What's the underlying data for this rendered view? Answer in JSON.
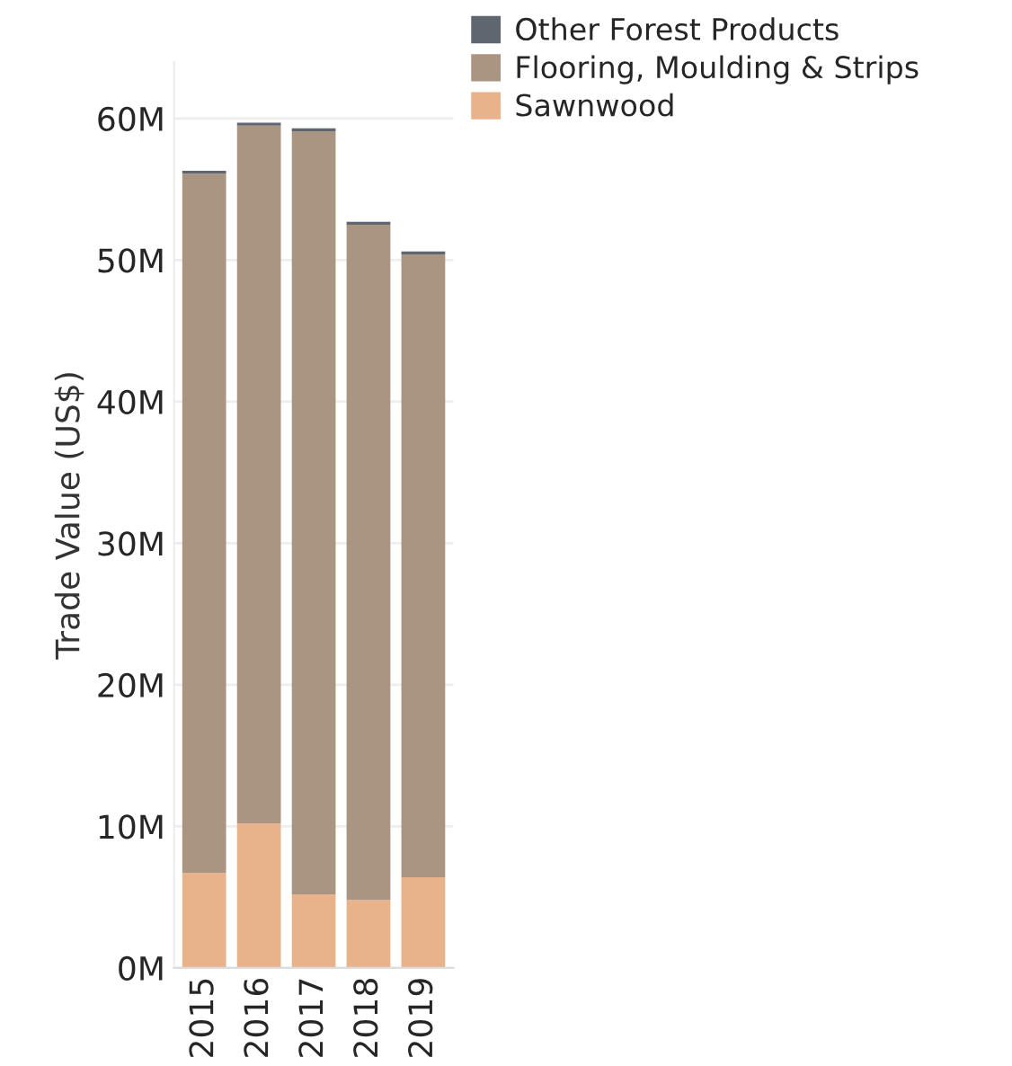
{
  "chart_data": {
    "type": "bar",
    "stacked": true,
    "ylabel": "Trade Value (US$)",
    "categories": [
      "2015",
      "2016",
      "2017",
      "2018",
      "2019"
    ],
    "series": [
      {
        "name": "Sawnwood",
        "color": "#e8b28a",
        "values": [
          6.7,
          10.2,
          5.2,
          4.8,
          6.4
        ]
      },
      {
        "name": "Flooring, Moulding & Strips",
        "color": "#a99581",
        "values": [
          49.4,
          49.3,
          53.9,
          47.7,
          44.0
        ]
      },
      {
        "name": "Other Forest Products",
        "color": "#5f6670",
        "values": [
          0.2,
          0.2,
          0.2,
          0.2,
          0.2
        ]
      }
    ],
    "ylim": [
      0,
      64
    ],
    "yticks": [
      {
        "value": 0,
        "label": "0M"
      },
      {
        "value": 10,
        "label": "10M"
      },
      {
        "value": 20,
        "label": "20M"
      },
      {
        "value": 30,
        "label": "30M"
      },
      {
        "value": 40,
        "label": "40M"
      },
      {
        "value": 50,
        "label": "50M"
      },
      {
        "value": 60,
        "label": "60M"
      }
    ],
    "grid": "y",
    "legend": "top right"
  }
}
